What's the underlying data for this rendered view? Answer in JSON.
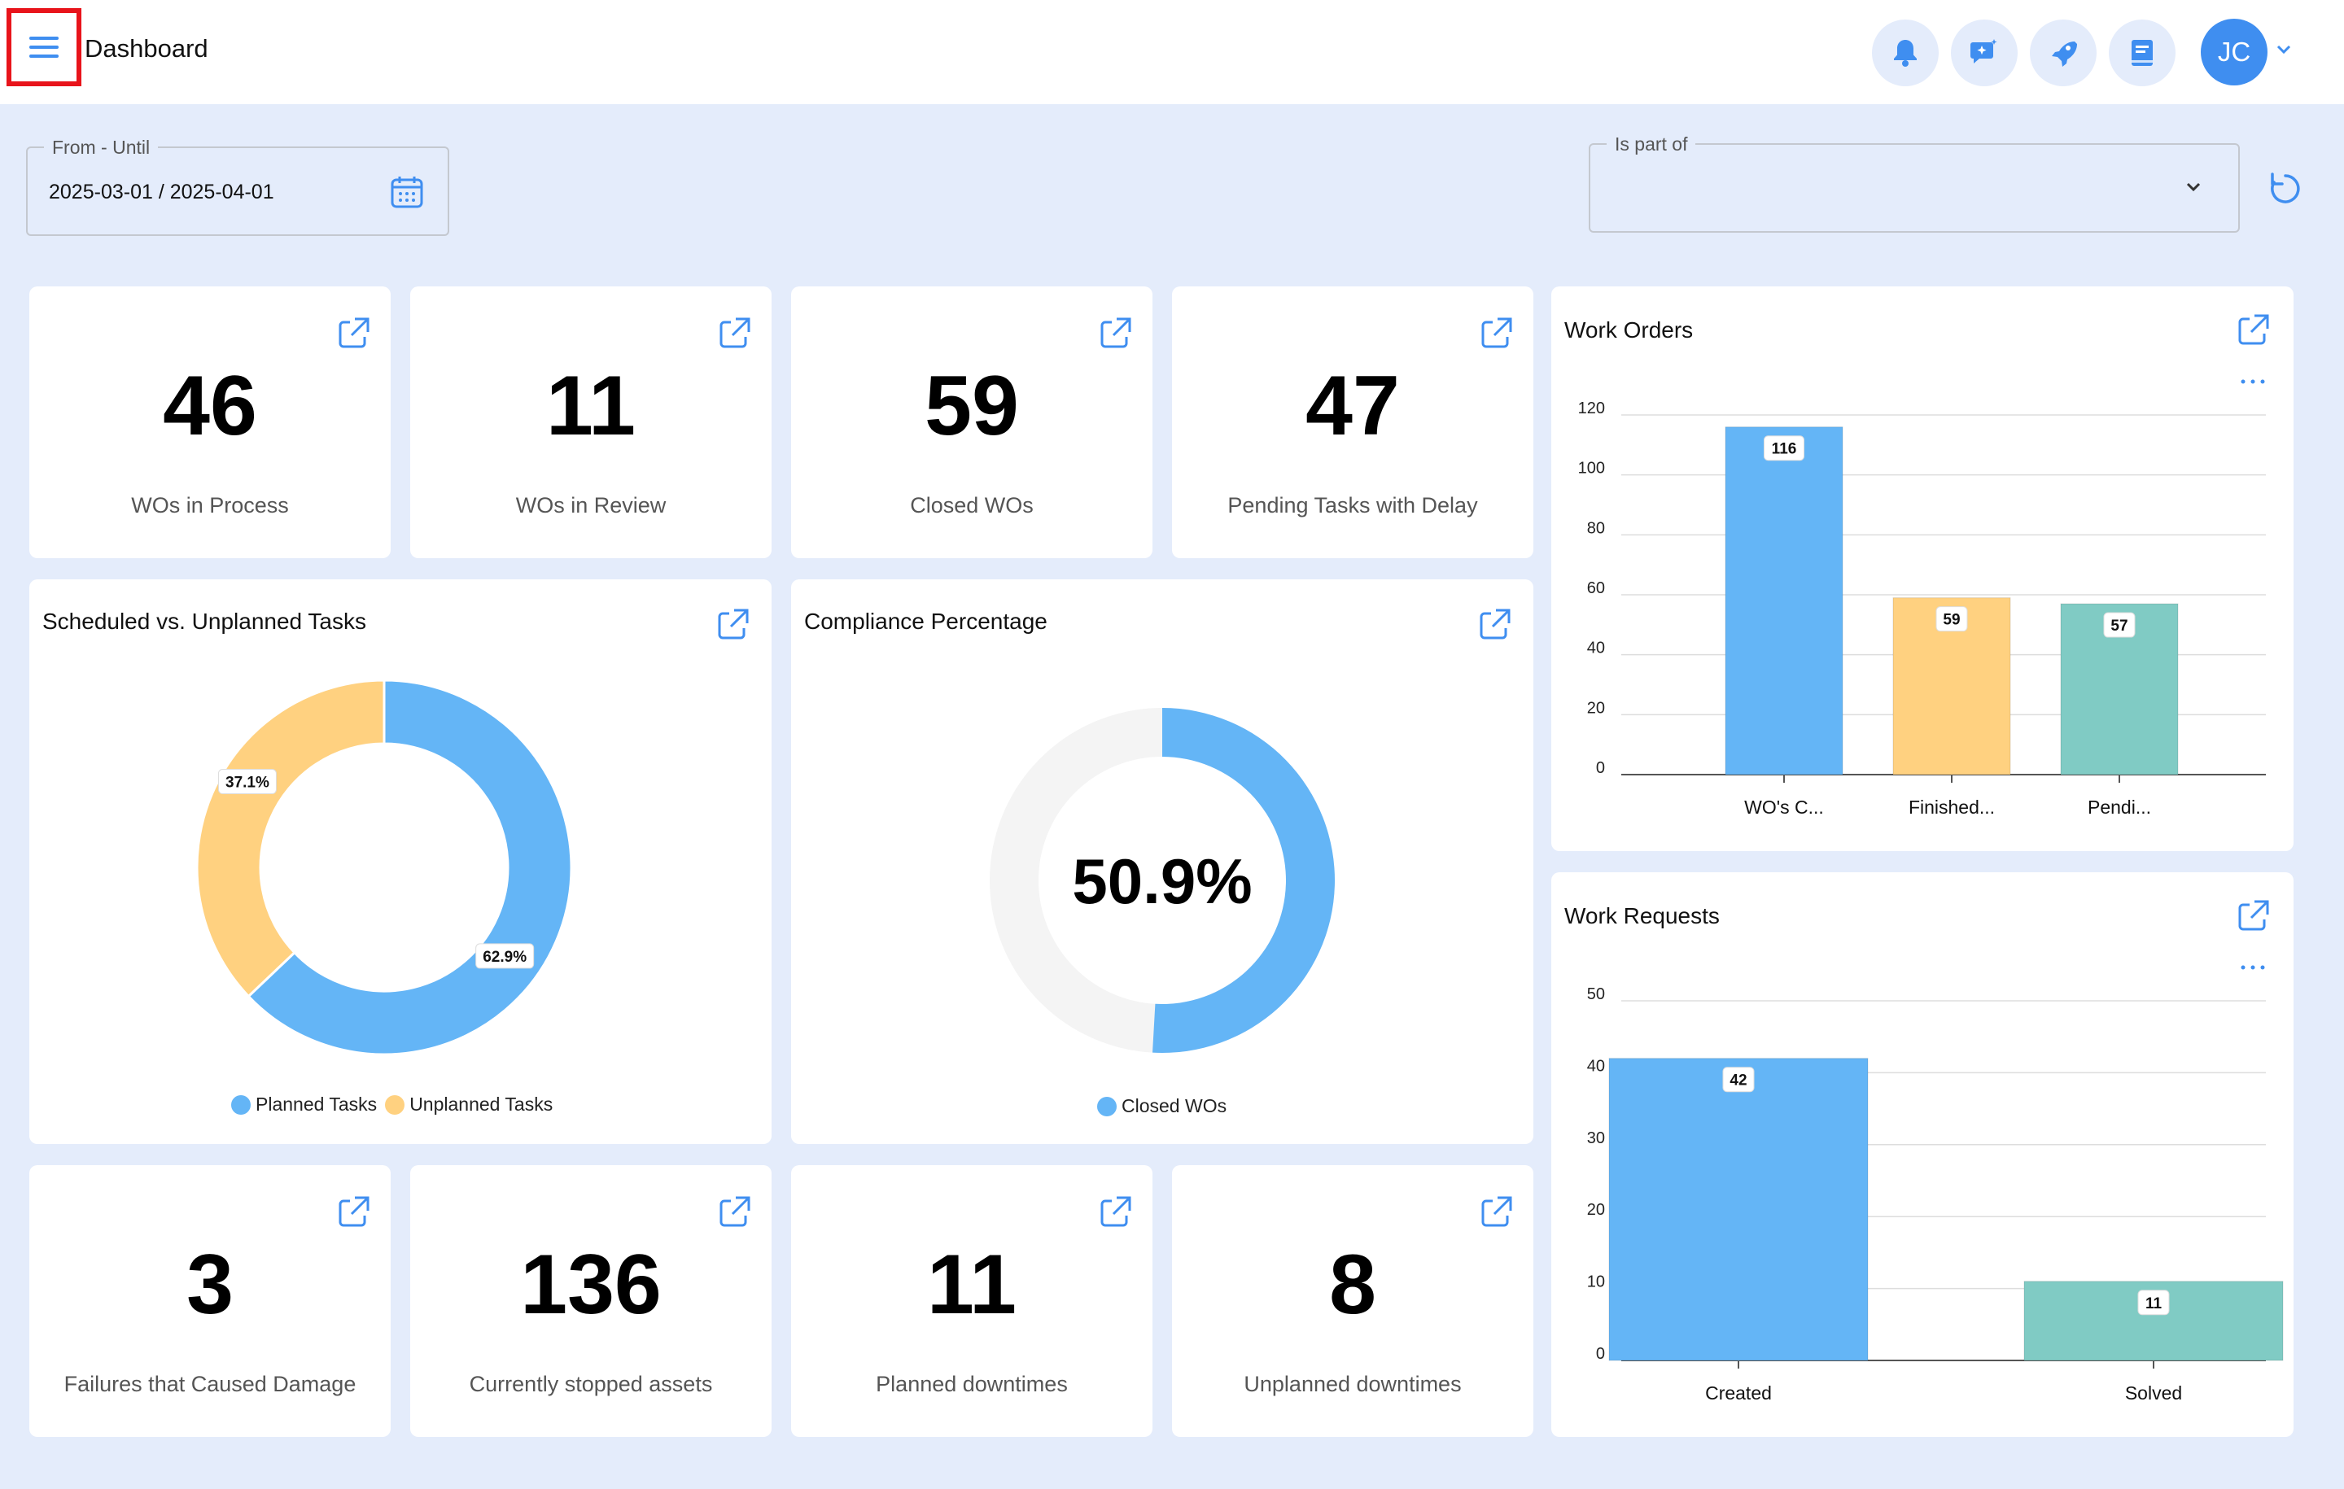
{
  "header": {
    "title": "Dashboard",
    "avatar_initials": "JC"
  },
  "filters": {
    "date_label": "From - Until",
    "date_value": "2025-03-01 / 2025-04-01",
    "part_label": "Is part of",
    "part_value": ""
  },
  "kpis_top": [
    {
      "value": "46",
      "label": "WOs in Process"
    },
    {
      "value": "11",
      "label": "WOs in Review"
    },
    {
      "value": "59",
      "label": "Closed WOs"
    },
    {
      "value": "47",
      "label": "Pending Tasks with Delay"
    }
  ],
  "kpis_bottom": [
    {
      "value": "3",
      "label": "Failures that Caused Damage"
    },
    {
      "value": "136",
      "label": "Currently stopped assets"
    },
    {
      "value": "11",
      "label": "Planned downtimes"
    },
    {
      "value": "8",
      "label": "Unplanned downtimes"
    }
  ],
  "scheduled": {
    "title": "Scheduled vs. Unplanned Tasks",
    "legend": [
      "Planned Tasks",
      "Unplanned Tasks"
    ]
  },
  "compliance": {
    "title": "Compliance Percentage",
    "value_text": "50.9%",
    "legend": "Closed WOs"
  },
  "work_orders": {
    "title": "Work Orders"
  },
  "work_requests": {
    "title": "Work Requests"
  },
  "colors": {
    "blue": "#64b5f6",
    "orange": "#ffd180",
    "teal": "#80cbc4",
    "accent": "#3f8ef0"
  },
  "chart_data": [
    {
      "type": "pie",
      "categories": [
        "Planned Tasks",
        "Unplanned Tasks"
      ],
      "values": [
        62.9,
        37.1
      ],
      "labels": [
        "62.9%",
        "37.1%"
      ]
    },
    {
      "type": "pie",
      "categories": [
        "Closed WOs"
      ],
      "values": [
        50.9
      ],
      "labels": [
        "50.9%"
      ]
    },
    {
      "type": "bar",
      "categories": [
        "WO's C...",
        "Finished...",
        "Pendi..."
      ],
      "values": [
        116,
        59,
        57
      ],
      "ylim": [
        0,
        120
      ],
      "yticks": [
        0,
        20,
        40,
        60,
        80,
        100,
        120
      ]
    },
    {
      "type": "bar",
      "categories": [
        "Created",
        "Solved"
      ],
      "values": [
        42,
        11
      ],
      "ylim": [
        0,
        50
      ],
      "yticks": [
        0,
        10,
        20,
        30,
        40,
        50
      ]
    }
  ]
}
